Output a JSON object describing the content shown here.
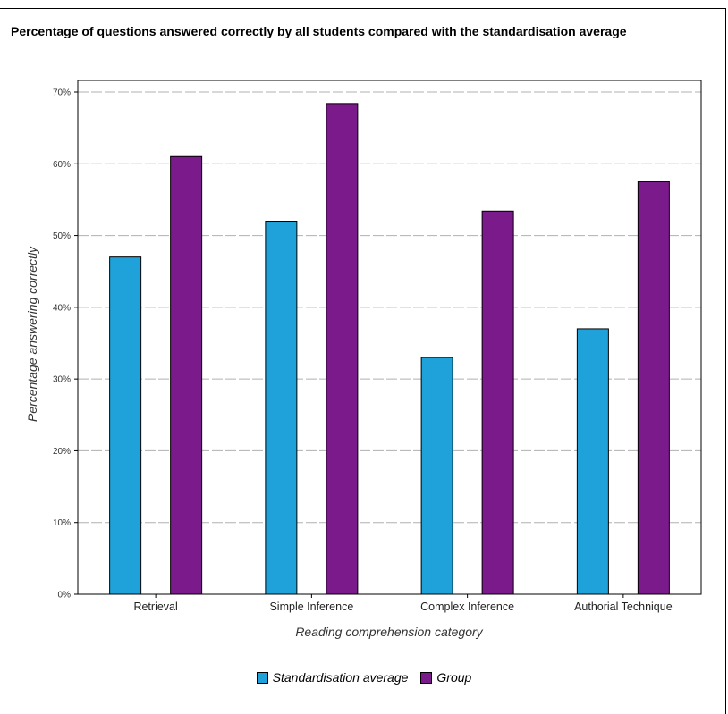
{
  "title": "Percentage of questions answered correctly by all students compared with the standardisation average",
  "chart_data": {
    "type": "bar",
    "categories": [
      "Retrieval",
      "Simple Inference",
      "Complex Inference",
      "Authorial Technique"
    ],
    "series": [
      {
        "name": "Standardisation average",
        "color": "#1fa2d9",
        "values": [
          47,
          52,
          33,
          37
        ]
      },
      {
        "name": "Group",
        "color": "#7b1a8a",
        "values": [
          61,
          68.4,
          53.4,
          57.5
        ]
      }
    ],
    "xlabel": "Reading comprehension category",
    "ylabel": "Percentage answering correctly",
    "ylim": [
      0,
      70
    ],
    "yticks": [
      "0%",
      "10%",
      "20%",
      "30%",
      "40%",
      "50%",
      "60%",
      "70%"
    ],
    "grid": true,
    "legend_position": "bottom"
  }
}
